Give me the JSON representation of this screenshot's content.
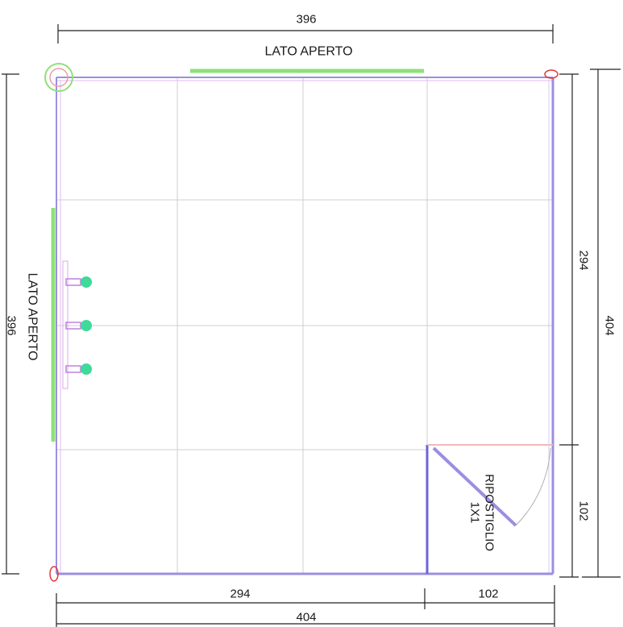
{
  "plan": {
    "top_side_label": "LATO APERTO",
    "left_side_label": "LATO APERTO",
    "storage_room": {
      "name": "RIPOSTIGLIO",
      "size": "1X1"
    }
  },
  "dimensions": {
    "top_total": "396",
    "left_total": "396",
    "right_upper": "294",
    "right_lower": "102",
    "right_total": "404",
    "bottom_left": "294",
    "bottom_right": "102",
    "bottom_total": "404"
  },
  "colors": {
    "wall": "#9a8fe0",
    "grid": "#c8c8c8",
    "open_side": "#8fe07a",
    "fixture": "#3fd99a",
    "dimension_line": "#222222",
    "post_marker": "#e23a3a"
  },
  "fixtures": {
    "count": 3
  }
}
